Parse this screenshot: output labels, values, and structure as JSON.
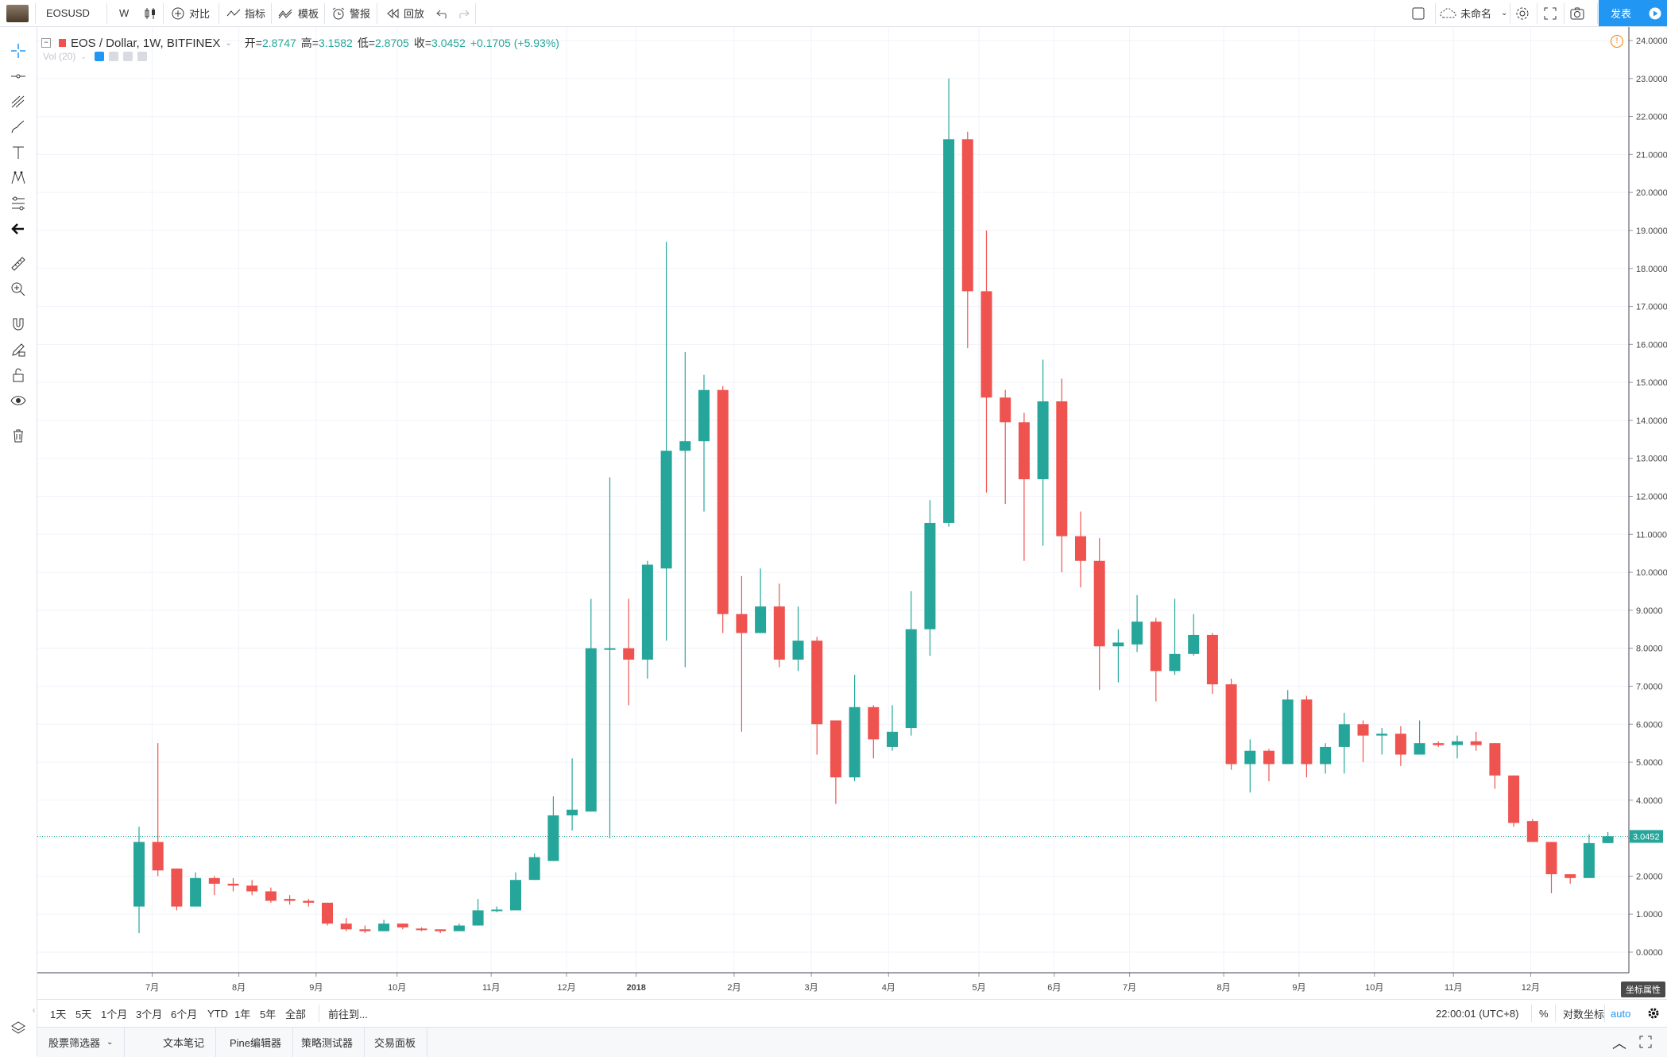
{
  "toolbar": {
    "symbol": "EOSUSD",
    "interval": "W",
    "compare": "对比",
    "indicators": "指标",
    "templates": "模板",
    "alerts": "警报",
    "replay": "回放",
    "layout_name": "未命名",
    "publish": "发表"
  },
  "legend": {
    "title": "EOS / Dollar, 1W, BITFINEX",
    "open_label": "开=",
    "open": "2.8747",
    "high_label": "高=",
    "high": "3.1582",
    "low_label": "低=",
    "low": "2.8705",
    "close_label": "收=",
    "close": "3.0452",
    "change": "+0.1705 (+5.93%)",
    "volume": "Vol (20)"
  },
  "colors": {
    "up": "#26a69a",
    "down": "#ef5350",
    "grid": "#f0f3fa",
    "accent": "#2196f3",
    "price_line": "#26a69a"
  },
  "chart_data": {
    "type": "candlestick",
    "ylim": [
      0,
      24
    ],
    "y_ticks": [
      "24.0000",
      "23.0000",
      "22.0000",
      "21.0000",
      "20.0000",
      "19.0000",
      "18.0000",
      "17.0000",
      "16.0000",
      "15.0000",
      "14.0000",
      "13.0000",
      "12.0000",
      "11.0000",
      "10.0000",
      "9.0000",
      "8.0000",
      "7.0000",
      "6.0000",
      "5.0000",
      "4.0000",
      "3.0000",
      "2.0000",
      "1.0000",
      "0.0000"
    ],
    "x_labels": [
      "7月",
      "8月",
      "9月",
      "10月",
      "11月",
      "12月",
      "2018",
      "2月",
      "3月",
      "4月",
      "5月",
      "6月",
      "7月",
      "8月",
      "9月",
      "10月",
      "11月",
      "12月"
    ],
    "last_price": "3.0452",
    "candles": [
      {
        "o": 1.2,
        "h": 3.3,
        "l": 0.5,
        "c": 2.9
      },
      {
        "o": 2.9,
        "h": 5.5,
        "l": 2.0,
        "c": 2.15
      },
      {
        "o": 2.2,
        "h": 2.2,
        "l": 1.1,
        "c": 1.2
      },
      {
        "o": 1.2,
        "h": 2.1,
        "l": 1.2,
        "c": 1.95
      },
      {
        "o": 1.95,
        "h": 2.0,
        "l": 1.5,
        "c": 1.8
      },
      {
        "o": 1.8,
        "h": 1.95,
        "l": 1.6,
        "c": 1.75
      },
      {
        "o": 1.75,
        "h": 1.9,
        "l": 1.5,
        "c": 1.6
      },
      {
        "o": 1.6,
        "h": 1.7,
        "l": 1.3,
        "c": 1.35
      },
      {
        "o": 1.4,
        "h": 1.5,
        "l": 1.25,
        "c": 1.35
      },
      {
        "o": 1.35,
        "h": 1.4,
        "l": 1.2,
        "c": 1.3
      },
      {
        "o": 1.3,
        "h": 1.3,
        "l": 0.7,
        "c": 0.75
      },
      {
        "o": 0.75,
        "h": 0.9,
        "l": 0.55,
        "c": 0.6
      },
      {
        "o": 0.6,
        "h": 0.7,
        "l": 0.5,
        "c": 0.55
      },
      {
        "o": 0.55,
        "h": 0.85,
        "l": 0.55,
        "c": 0.75
      },
      {
        "o": 0.75,
        "h": 0.75,
        "l": 0.6,
        "c": 0.65
      },
      {
        "o": 0.62,
        "h": 0.65,
        "l": 0.55,
        "c": 0.6
      },
      {
        "o": 0.6,
        "h": 0.6,
        "l": 0.5,
        "c": 0.55
      },
      {
        "o": 0.55,
        "h": 0.75,
        "l": 0.55,
        "c": 0.7
      },
      {
        "o": 0.7,
        "h": 1.4,
        "l": 0.7,
        "c": 1.1
      },
      {
        "o": 1.1,
        "h": 1.2,
        "l": 1.05,
        "c": 1.12
      },
      {
        "o": 1.1,
        "h": 2.1,
        "l": 1.1,
        "c": 1.9
      },
      {
        "o": 1.9,
        "h": 2.6,
        "l": 1.9,
        "c": 2.5
      },
      {
        "o": 2.4,
        "h": 4.1,
        "l": 2.4,
        "c": 3.6
      },
      {
        "o": 3.6,
        "h": 5.1,
        "l": 3.2,
        "c": 3.75
      },
      {
        "o": 3.7,
        "h": 9.3,
        "l": 3.7,
        "c": 8.0
      },
      {
        "o": 8.0,
        "h": 12.5,
        "l": 3.0,
        "c": 8.0
      },
      {
        "o": 8.0,
        "h": 9.3,
        "l": 6.5,
        "c": 7.7
      },
      {
        "o": 7.7,
        "h": 10.3,
        "l": 7.2,
        "c": 10.2
      },
      {
        "o": 10.1,
        "h": 18.7,
        "l": 8.2,
        "c": 13.2
      },
      {
        "o": 13.2,
        "h": 15.8,
        "l": 7.5,
        "c": 13.45
      },
      {
        "o": 13.45,
        "h": 15.2,
        "l": 11.6,
        "c": 14.8
      },
      {
        "o": 14.8,
        "h": 14.9,
        "l": 8.4,
        "c": 8.9
      },
      {
        "o": 8.9,
        "h": 9.9,
        "l": 5.8,
        "c": 8.4
      },
      {
        "o": 8.4,
        "h": 10.1,
        "l": 8.4,
        "c": 9.1
      },
      {
        "o": 9.1,
        "h": 9.7,
        "l": 7.5,
        "c": 7.7
      },
      {
        "o": 7.7,
        "h": 9.1,
        "l": 7.4,
        "c": 8.2
      },
      {
        "o": 8.2,
        "h": 8.3,
        "l": 5.2,
        "c": 6.0
      },
      {
        "o": 6.1,
        "h": 6.1,
        "l": 3.9,
        "c": 4.6
      },
      {
        "o": 4.6,
        "h": 7.3,
        "l": 4.5,
        "c": 6.45
      },
      {
        "o": 6.45,
        "h": 6.5,
        "l": 5.1,
        "c": 5.6
      },
      {
        "o": 5.4,
        "h": 6.5,
        "l": 5.3,
        "c": 5.8
      },
      {
        "o": 5.9,
        "h": 9.5,
        "l": 5.7,
        "c": 8.5
      },
      {
        "o": 8.5,
        "h": 11.9,
        "l": 7.8,
        "c": 11.3
      },
      {
        "o": 11.3,
        "h": 23.0,
        "l": 11.2,
        "c": 21.4
      },
      {
        "o": 21.4,
        "h": 21.6,
        "l": 15.9,
        "c": 17.4
      },
      {
        "o": 17.4,
        "h": 19.0,
        "l": 12.1,
        "c": 14.6
      },
      {
        "o": 14.6,
        "h": 14.8,
        "l": 11.8,
        "c": 13.95
      },
      {
        "o": 13.95,
        "h": 14.2,
        "l": 10.3,
        "c": 12.45
      },
      {
        "o": 12.45,
        "h": 15.6,
        "l": 10.7,
        "c": 14.5
      },
      {
        "o": 14.5,
        "h": 15.1,
        "l": 10.0,
        "c": 10.95
      },
      {
        "o": 10.95,
        "h": 11.6,
        "l": 9.6,
        "c": 10.3
      },
      {
        "o": 10.3,
        "h": 10.9,
        "l": 6.9,
        "c": 8.05
      },
      {
        "o": 8.05,
        "h": 8.5,
        "l": 7.1,
        "c": 8.15
      },
      {
        "o": 8.1,
        "h": 9.4,
        "l": 7.9,
        "c": 8.7
      },
      {
        "o": 8.7,
        "h": 8.8,
        "l": 6.6,
        "c": 7.4
      },
      {
        "o": 7.4,
        "h": 9.3,
        "l": 7.3,
        "c": 7.85
      },
      {
        "o": 7.85,
        "h": 8.9,
        "l": 7.8,
        "c": 8.35
      },
      {
        "o": 8.35,
        "h": 8.4,
        "l": 6.8,
        "c": 7.05
      },
      {
        "o": 7.05,
        "h": 7.2,
        "l": 4.8,
        "c": 4.95
      },
      {
        "o": 4.95,
        "h": 5.6,
        "l": 4.2,
        "c": 5.3
      },
      {
        "o": 5.3,
        "h": 5.35,
        "l": 4.5,
        "c": 4.95
      },
      {
        "o": 4.95,
        "h": 6.9,
        "l": 4.95,
        "c": 6.65
      },
      {
        "o": 6.65,
        "h": 6.75,
        "l": 4.6,
        "c": 4.95
      },
      {
        "o": 4.95,
        "h": 5.5,
        "l": 4.7,
        "c": 5.4
      },
      {
        "o": 5.4,
        "h": 6.3,
        "l": 4.7,
        "c": 6.0
      },
      {
        "o": 6.0,
        "h": 6.1,
        "l": 5.0,
        "c": 5.7
      },
      {
        "o": 5.7,
        "h": 5.9,
        "l": 5.2,
        "c": 5.75
      },
      {
        "o": 5.75,
        "h": 5.95,
        "l": 4.9,
        "c": 5.2
      },
      {
        "o": 5.2,
        "h": 6.1,
        "l": 5.2,
        "c": 5.5
      },
      {
        "o": 5.5,
        "h": 5.55,
        "l": 5.4,
        "c": 5.45
      },
      {
        "o": 5.45,
        "h": 5.7,
        "l": 5.1,
        "c": 5.55
      },
      {
        "o": 5.55,
        "h": 5.8,
        "l": 5.3,
        "c": 5.45
      },
      {
        "o": 5.5,
        "h": 5.5,
        "l": 4.3,
        "c": 4.65
      },
      {
        "o": 4.65,
        "h": 4.65,
        "l": 3.3,
        "c": 3.4
      },
      {
        "o": 3.45,
        "h": 3.5,
        "l": 2.9,
        "c": 2.9
      },
      {
        "o": 2.9,
        "h": 2.9,
        "l": 1.55,
        "c": 2.05
      },
      {
        "o": 2.05,
        "h": 2.05,
        "l": 1.8,
        "c": 1.95
      },
      {
        "o": 1.95,
        "h": 3.1,
        "l": 1.95,
        "c": 2.87
      },
      {
        "o": 2.87,
        "h": 3.16,
        "l": 2.87,
        "c": 3.05
      }
    ]
  },
  "footer": {
    "ranges": [
      "1天",
      "5天",
      "1个月",
      "3个月",
      "6个月",
      "YTD",
      "1年",
      "5年",
      "全部"
    ],
    "goto": "前往到...",
    "time": "22:00:01 (UTC+8)",
    "percent": "%",
    "log_scale": "对数坐标",
    "auto": "auto",
    "axis_props": "坐标属性"
  },
  "bottom_tabs": [
    "股票筛选器",
    "文本笔记",
    "Pine编辑器",
    "策略测试器",
    "交易面板"
  ]
}
